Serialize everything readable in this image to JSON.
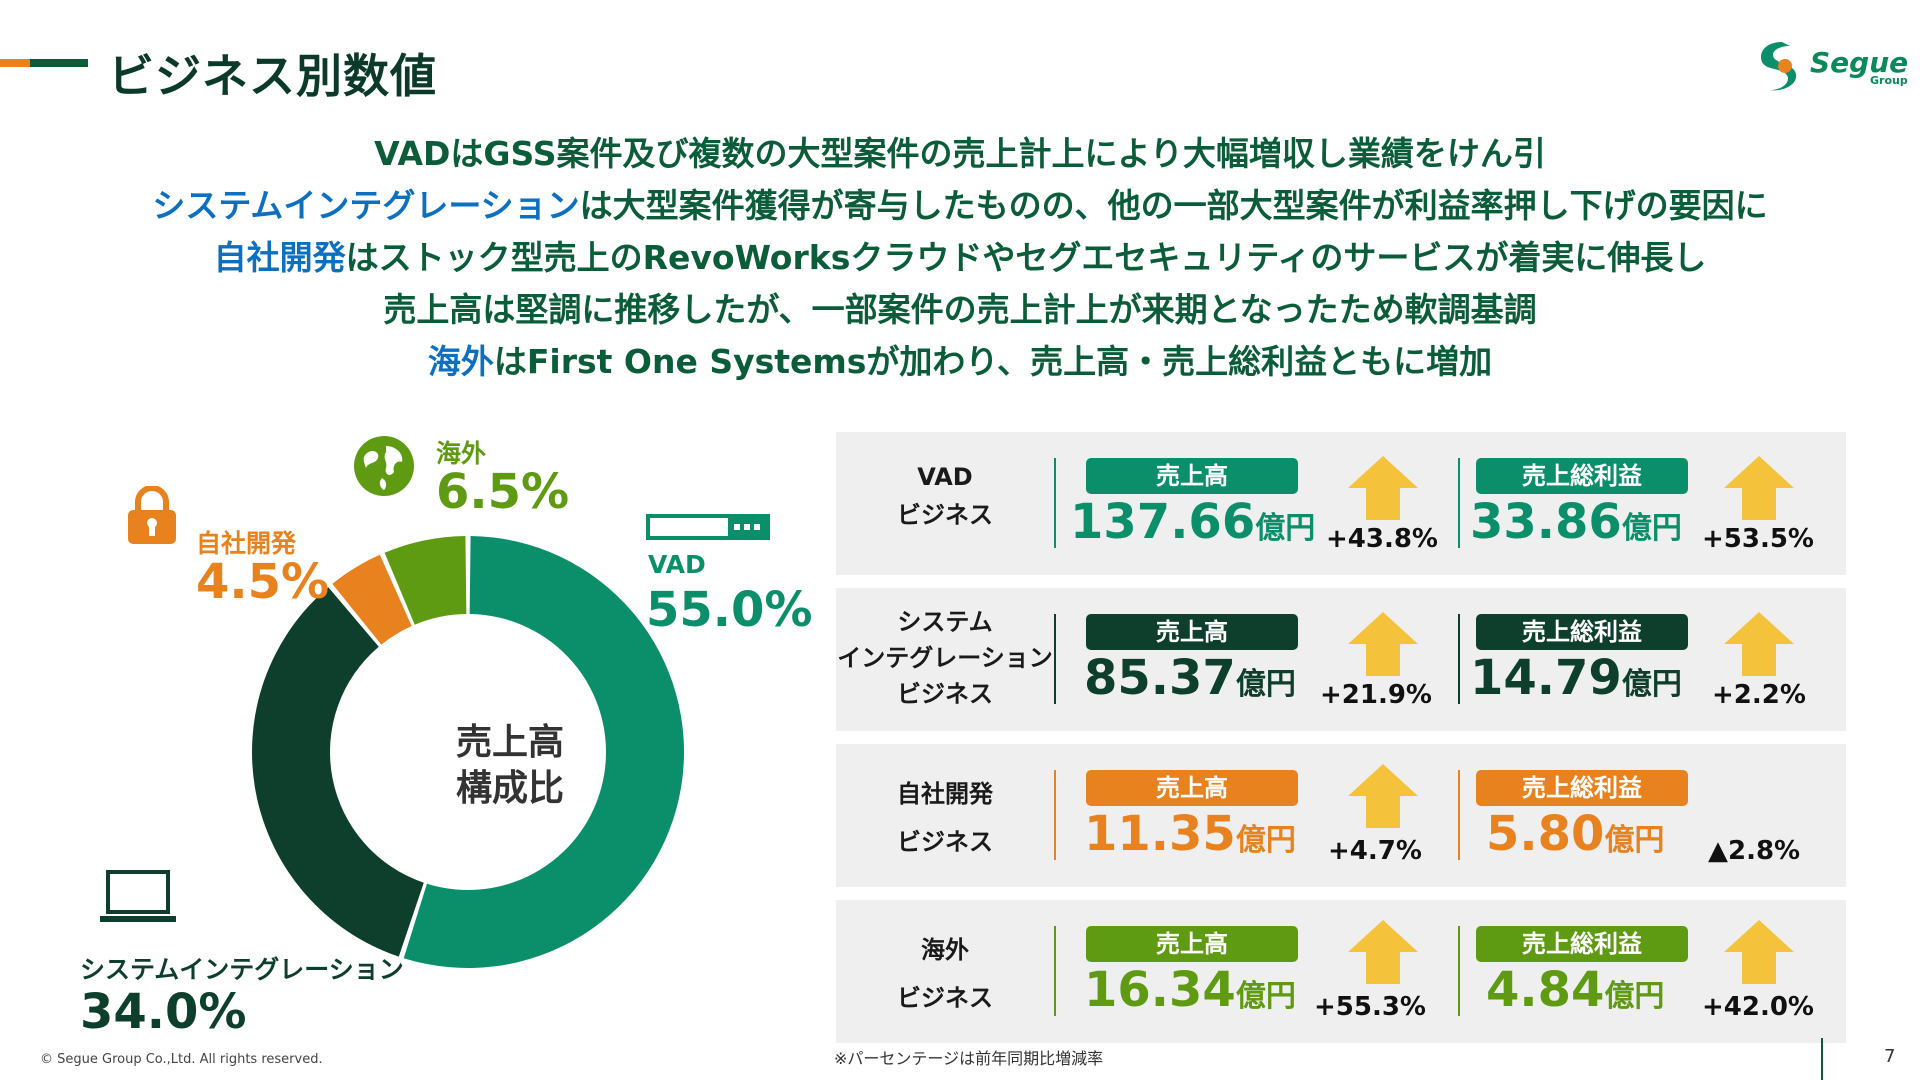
{
  "header": {
    "title": "ビジネス別数値",
    "logo_text": "Segue",
    "logo_sub": "Group"
  },
  "summary": [
    {
      "hl": "",
      "text": "VADはGSS案件及び複数の大型案件の売上計上により大幅増収し業績をけん引"
    },
    {
      "hl": "システムインテグレーション",
      "text": "は大型案件獲得が寄与したものの、他の一部大型案件が利益率押し下げの要因に"
    },
    {
      "hl": "自社開発",
      "text": "はストック型売上のRevoWorksクラウドやセグエセキュリティのサービスが着実に伸長し"
    },
    {
      "hl": "",
      "text": "売上高は堅調に推移したが、一部案件の売上計上が来期となったため軟調基調"
    },
    {
      "hl": "海外",
      "text": "はFirst One Systemsが加わり、売上高・売上総利益ともに増加"
    }
  ],
  "chart_data": {
    "type": "pie",
    "center_label_1": "売上高",
    "center_label_2": "構成比",
    "slices": [
      {
        "name": "VAD",
        "value": 55.0,
        "label": "55.0%",
        "color": "#0a8f6a"
      },
      {
        "name": "システムインテグレーション",
        "value": 34.0,
        "label": "34.0%",
        "color": "#0d3f2c"
      },
      {
        "name": "自社開発",
        "value": 4.5,
        "label": "4.5%",
        "color": "#e8821e"
      },
      {
        "name": "海外",
        "value": 6.5,
        "label": "6.5%",
        "color": "#5e9a12"
      }
    ]
  },
  "rows": [
    {
      "title_lines": [
        "VAD",
        "ビジネス"
      ],
      "color": "#0a8f6a",
      "value_color": "#0a8f6a",
      "sales_label": "売上高",
      "sales_value": "137.66",
      "sales_unit": "億円",
      "sales_change": "+43.8%",
      "profit_label": "売上総利益",
      "profit_value": "33.86",
      "profit_unit": "億円",
      "profit_change": "+53.5%",
      "sales_arrow": "up",
      "profit_arrow": "up"
    },
    {
      "title_lines": [
        "システム",
        "インテグレーション",
        "ビジネス"
      ],
      "color": "#0d3f2c",
      "value_color": "#0d3f2c",
      "sales_label": "売上高",
      "sales_value": "85.37",
      "sales_unit": "億円",
      "sales_change": "+21.9%",
      "profit_label": "売上総利益",
      "profit_value": "14.79",
      "profit_unit": "億円",
      "profit_change": "+2.2%",
      "sales_arrow": "up",
      "profit_arrow": "up"
    },
    {
      "title_lines": [
        "自社開発",
        "ビジネス"
      ],
      "color": "#e8821e",
      "value_color": "#e8821e",
      "sales_label": "売上高",
      "sales_value": "11.35",
      "sales_unit": "億円",
      "sales_change": "+4.7%",
      "profit_label": "売上総利益",
      "profit_value": "5.80",
      "profit_unit": "億円",
      "profit_change": "▲2.8%",
      "sales_arrow": "up",
      "profit_arrow": "none"
    },
    {
      "title_lines": [
        "海外",
        "ビジネス"
      ],
      "color": "#5e9a12",
      "value_color": "#5e9a12",
      "sales_label": "売上高",
      "sales_value": "16.34",
      "sales_unit": "億円",
      "sales_change": "+55.3%",
      "profit_label": "売上総利益",
      "profit_value": "4.84",
      "profit_unit": "億円",
      "profit_change": "+42.0%",
      "sales_arrow": "up",
      "profit_arrow": "up"
    }
  ],
  "footer": {
    "note": "※パーセンテージは前年同期比増減率",
    "copyright": "© Segue Group Co.,Ltd. All rights reserved.",
    "page": "7"
  },
  "icons": {
    "vad": "server-icon",
    "si": "laptop-icon",
    "own": "lock-icon",
    "overseas": "globe-icon"
  },
  "colors": {
    "arrow": "#f5c33b",
    "title": "#0c3a2a",
    "highlight": "#0d6fbf"
  }
}
